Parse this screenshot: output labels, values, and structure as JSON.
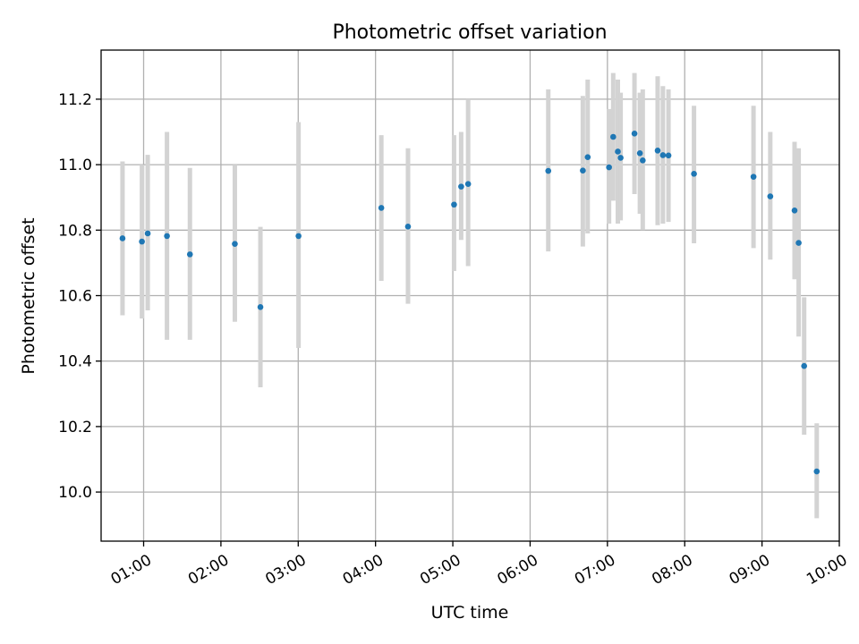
{
  "chart_data": {
    "type": "scatter",
    "title": "Photometric offset variation",
    "xlabel": "UTC time",
    "ylabel": "Photometric offset",
    "x_unit": "hours UTC",
    "xlim": [
      0.45,
      10.0
    ],
    "ylim": [
      9.85,
      11.35
    ],
    "x_ticks": [
      1,
      2,
      3,
      4,
      5,
      6,
      7,
      8,
      9,
      10
    ],
    "x_tick_labels": [
      "01:00",
      "02:00",
      "03:00",
      "04:00",
      "05:00",
      "06:00",
      "07:00",
      "08:00",
      "09:00",
      "10:00"
    ],
    "y_ticks": [
      10.0,
      10.2,
      10.4,
      10.6,
      10.8,
      11.0,
      11.2
    ],
    "y_tick_labels": [
      "10.0",
      "10.2",
      "10.4",
      "10.6",
      "10.8",
      "11.0",
      "11.2"
    ],
    "grid": true,
    "marker_color": "#1f77b4",
    "errorbar_color": "#d3d3d3",
    "points": [
      {
        "x": 0.727,
        "y": 10.775,
        "lo": 10.54,
        "hi": 11.01
      },
      {
        "x": 0.978,
        "y": 10.765,
        "lo": 10.53,
        "hi": 11.0
      },
      {
        "x": 1.053,
        "y": 10.79,
        "lo": 10.555,
        "hi": 11.03
      },
      {
        "x": 1.302,
        "y": 10.782,
        "lo": 10.465,
        "hi": 11.1
      },
      {
        "x": 1.599,
        "y": 10.726,
        "lo": 10.465,
        "hi": 10.99
      },
      {
        "x": 2.18,
        "y": 10.758,
        "lo": 10.52,
        "hi": 11.0
      },
      {
        "x": 2.511,
        "y": 10.565,
        "lo": 10.32,
        "hi": 10.81
      },
      {
        "x": 3.004,
        "y": 10.782,
        "lo": 10.44,
        "hi": 11.13
      },
      {
        "x": 4.075,
        "y": 10.868,
        "lo": 10.645,
        "hi": 11.09
      },
      {
        "x": 4.42,
        "y": 10.811,
        "lo": 10.575,
        "hi": 11.05
      },
      {
        "x": 5.016,
        "y": 10.878,
        "lo": 10.675,
        "hi": 11.09
      },
      {
        "x": 5.108,
        "y": 10.933,
        "lo": 10.77,
        "hi": 11.1
      },
      {
        "x": 5.198,
        "y": 10.941,
        "lo": 10.69,
        "hi": 11.2
      },
      {
        "x": 6.235,
        "y": 10.981,
        "lo": 10.735,
        "hi": 11.23
      },
      {
        "x": 6.682,
        "y": 10.982,
        "lo": 10.75,
        "hi": 11.21
      },
      {
        "x": 6.745,
        "y": 11.023,
        "lo": 10.79,
        "hi": 11.26
      },
      {
        "x": 7.021,
        "y": 10.992,
        "lo": 10.82,
        "hi": 11.17
      },
      {
        "x": 7.075,
        "y": 11.085,
        "lo": 10.89,
        "hi": 11.28
      },
      {
        "x": 7.135,
        "y": 11.04,
        "lo": 10.82,
        "hi": 11.26
      },
      {
        "x": 7.171,
        "y": 11.021,
        "lo": 10.83,
        "hi": 11.22
      },
      {
        "x": 7.35,
        "y": 11.095,
        "lo": 10.91,
        "hi": 11.28
      },
      {
        "x": 7.42,
        "y": 11.035,
        "lo": 10.85,
        "hi": 11.22
      },
      {
        "x": 7.457,
        "y": 11.013,
        "lo": 10.8,
        "hi": 11.23
      },
      {
        "x": 7.65,
        "y": 11.043,
        "lo": 10.815,
        "hi": 11.27
      },
      {
        "x": 7.718,
        "y": 11.029,
        "lo": 10.82,
        "hi": 11.24
      },
      {
        "x": 7.79,
        "y": 11.028,
        "lo": 10.825,
        "hi": 11.23
      },
      {
        "x": 8.12,
        "y": 10.972,
        "lo": 10.76,
        "hi": 11.18
      },
      {
        "x": 8.89,
        "y": 10.963,
        "lo": 10.745,
        "hi": 11.18
      },
      {
        "x": 9.107,
        "y": 10.903,
        "lo": 10.71,
        "hi": 11.1
      },
      {
        "x": 9.421,
        "y": 10.86,
        "lo": 10.65,
        "hi": 11.07
      },
      {
        "x": 9.474,
        "y": 10.761,
        "lo": 10.475,
        "hi": 11.05
      },
      {
        "x": 9.545,
        "y": 10.385,
        "lo": 10.175,
        "hi": 10.595
      },
      {
        "x": 9.708,
        "y": 10.063,
        "lo": 9.92,
        "hi": 10.21
      }
    ]
  }
}
